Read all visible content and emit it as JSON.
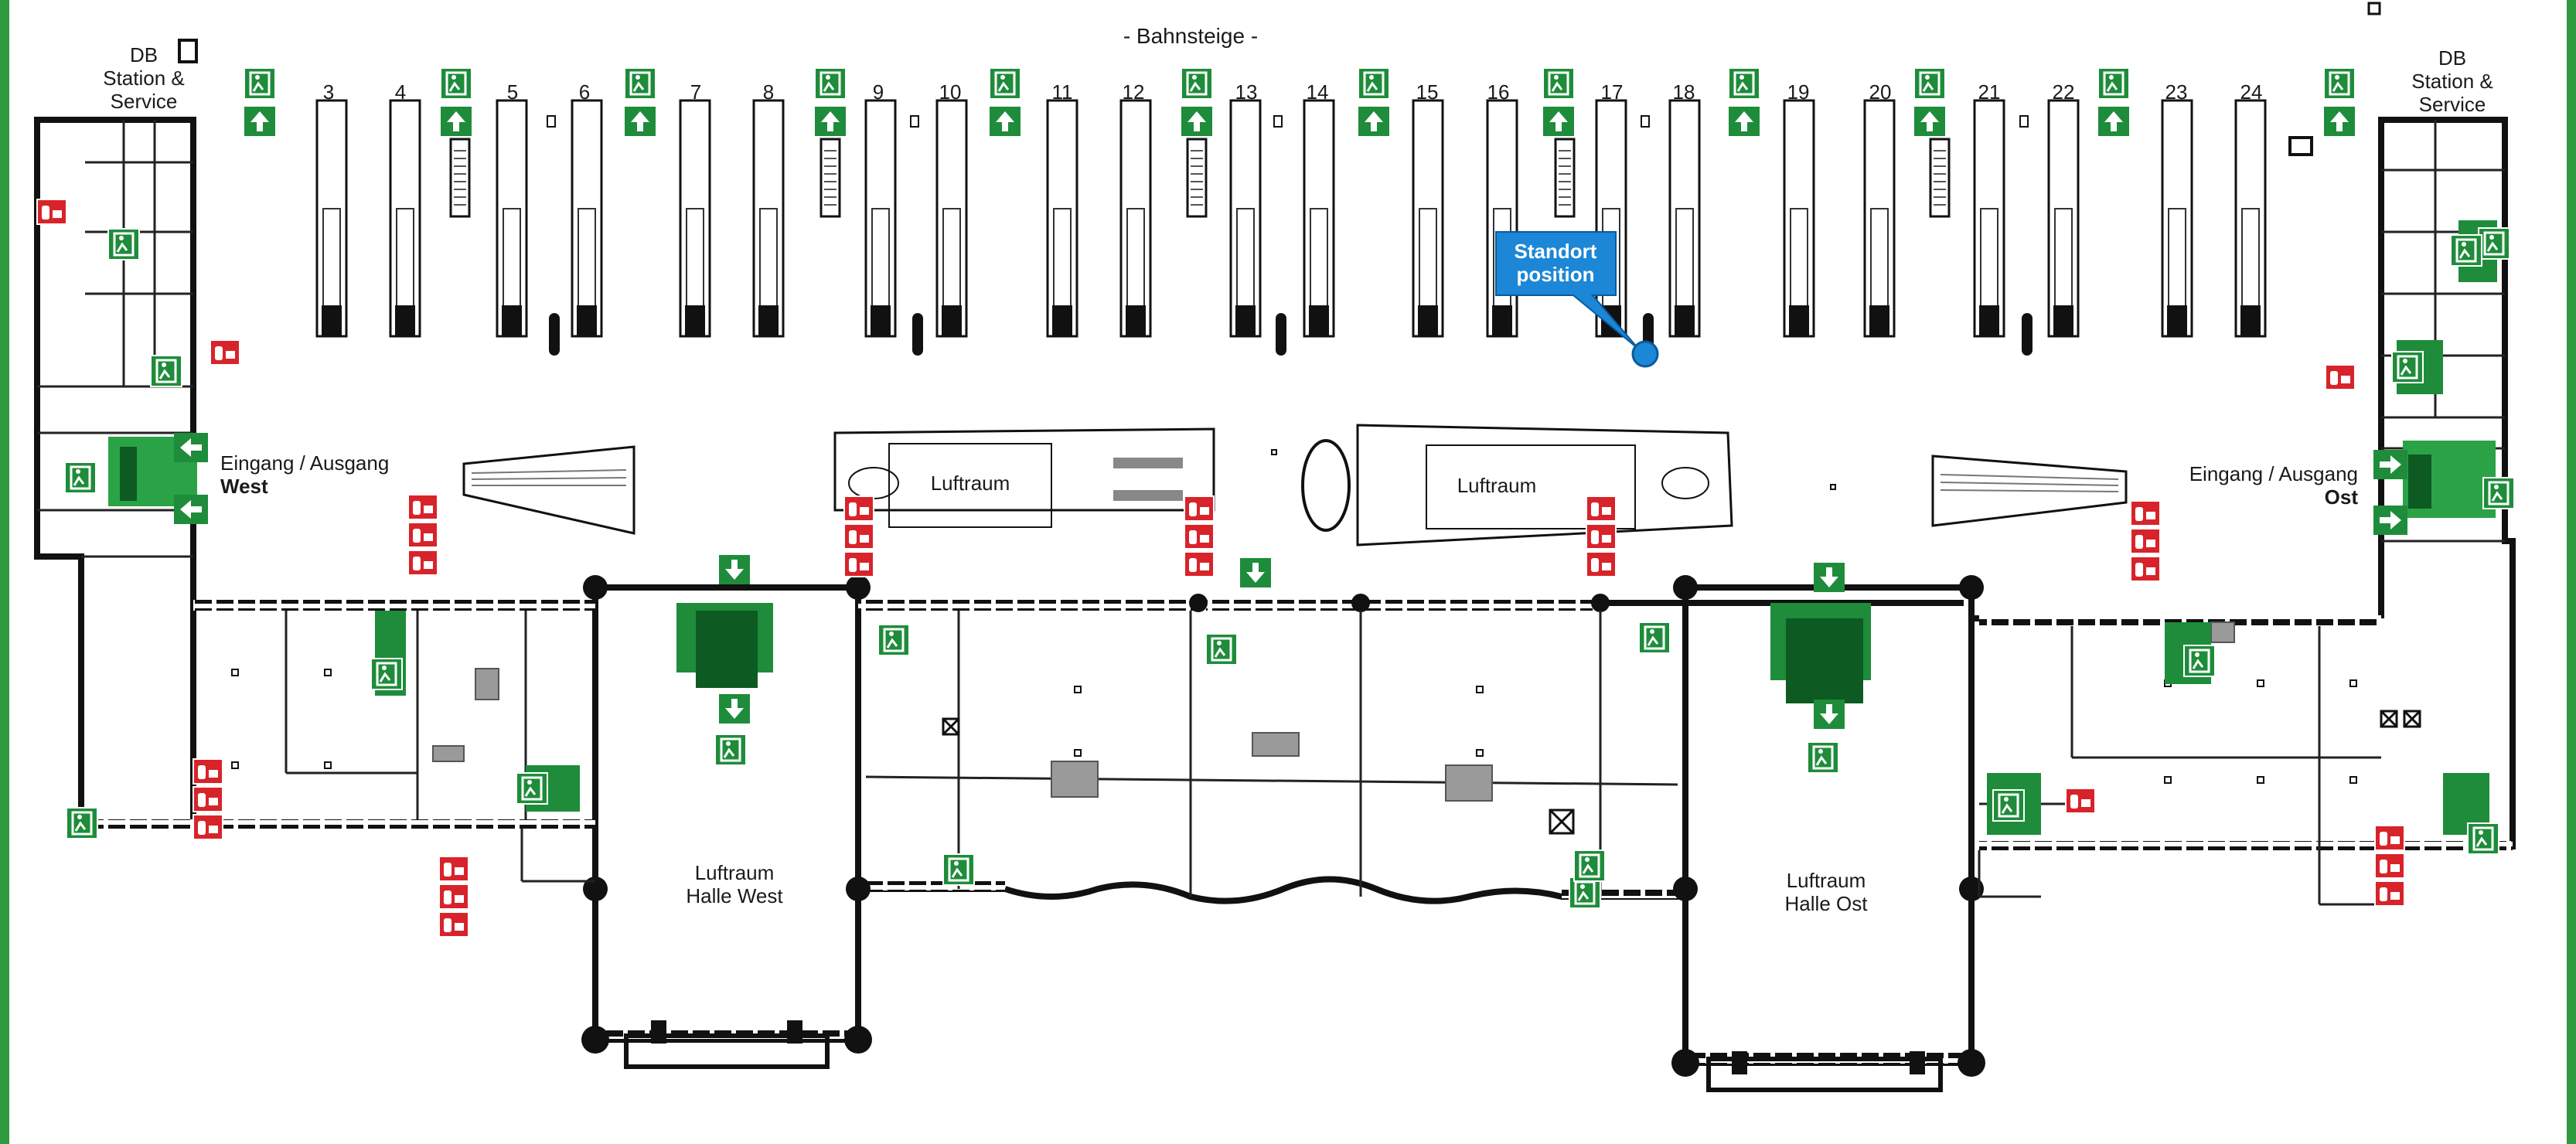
{
  "labels": {
    "bahnsteige": "- Bahnsteige -",
    "db_west_1": "DB",
    "db_west_2": "Station &",
    "db_west_3": "Service",
    "db_ost_1": "DB",
    "db_ost_2": "Station &",
    "db_ost_3": "Service",
    "eingang_west": "Eingang / Ausgang",
    "west": "West",
    "eingang_ost": "Eingang / Ausgang",
    "ost": "Ost",
    "luftraum_1": "Luftraum",
    "luftraum_2": "Luftraum",
    "halle_west_1": "Luftraum",
    "halle_west_2": "Halle West",
    "halle_ost_1": "Luftraum",
    "halle_ost_2": "Halle Ost",
    "standort_1": "Standort",
    "standort_2": "position"
  },
  "tracks": [
    "3",
    "4",
    "5",
    "6",
    "7",
    "8",
    "9",
    "10",
    "11",
    "12",
    "13",
    "14",
    "15",
    "16",
    "17",
    "18",
    "19",
    "20",
    "21",
    "22",
    "23",
    "24"
  ],
  "colors": {
    "frame_green": "#2f9a3e",
    "exit_green": "#1e8c3a",
    "fire_red": "#d8232a",
    "standort_blue": "#1b87d6",
    "wall": "#111111",
    "floor": "#ffffff"
  },
  "icons": {
    "exit_sign": "emergency-exit-running-man-icon",
    "arrow": "direction-arrow-icon",
    "fire": "fire-extinguisher-icon",
    "marker": "location-pin-icon"
  }
}
